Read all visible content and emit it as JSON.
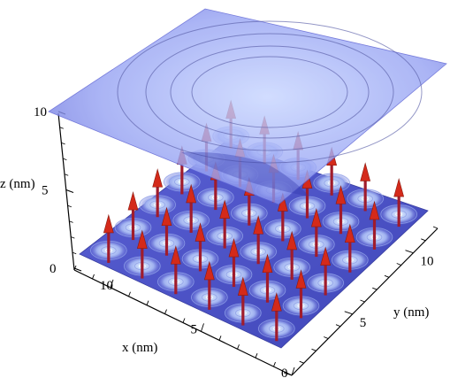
{
  "chart_data": {
    "type": "surface3d",
    "title": "",
    "xlabel": "x (nm)",
    "ylabel": "y (nm)",
    "zlabel": "z (nm)",
    "xlim": [
      0,
      12
    ],
    "ylim": [
      0,
      12
    ],
    "zlim": [
      0,
      10
    ],
    "x_ticks": [
      "0",
      "5",
      "10"
    ],
    "y_ticks": [
      "0",
      "5",
      "10"
    ],
    "z_ticks": [
      "0",
      "5",
      "10"
    ],
    "surfaces": [
      {
        "name": "",
        "z": 0,
        "contour_pattern": "lattice of circular contours"
      },
      {
        "name": "",
        "z": 10,
        "contour_pattern": "concentric rings centered at (6, 6)"
      }
    ],
    "arrow_lattice": {
      "rows": 6,
      "cols": 6,
      "spacing_nm": 2,
      "x_values": [
        1,
        3,
        5,
        7,
        9,
        11
      ],
      "y_values": [
        1,
        3,
        5,
        7,
        9,
        11
      ],
      "orientation": "+z",
      "color": "#d42a1a"
    },
    "grid": false,
    "legend": "none",
    "colors": {
      "bottom_plane": "#4f56c8",
      "top_plane": "#6f74f2",
      "arrow": "#d42a1a",
      "arrow_shaft": "#a01c2c"
    }
  }
}
